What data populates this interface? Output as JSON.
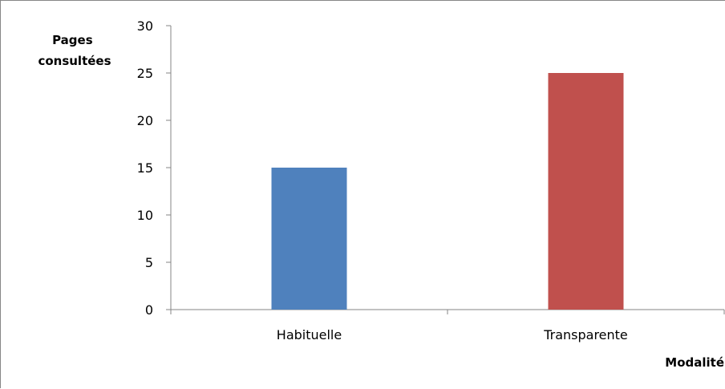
{
  "chart_data": {
    "type": "bar",
    "categories": [
      "Habituelle",
      "Transparente"
    ],
    "values": [
      15,
      25
    ],
    "colors": [
      "#4f81bd",
      "#c0504d"
    ],
    "ylabel_lines": [
      "Pages",
      "consultées"
    ],
    "xlabel": "Modalité",
    "ylim": [
      0,
      30
    ],
    "yticks": [
      "0",
      "5",
      "10",
      "15",
      "20",
      "25",
      "30"
    ],
    "grid": false,
    "legend": "none"
  }
}
